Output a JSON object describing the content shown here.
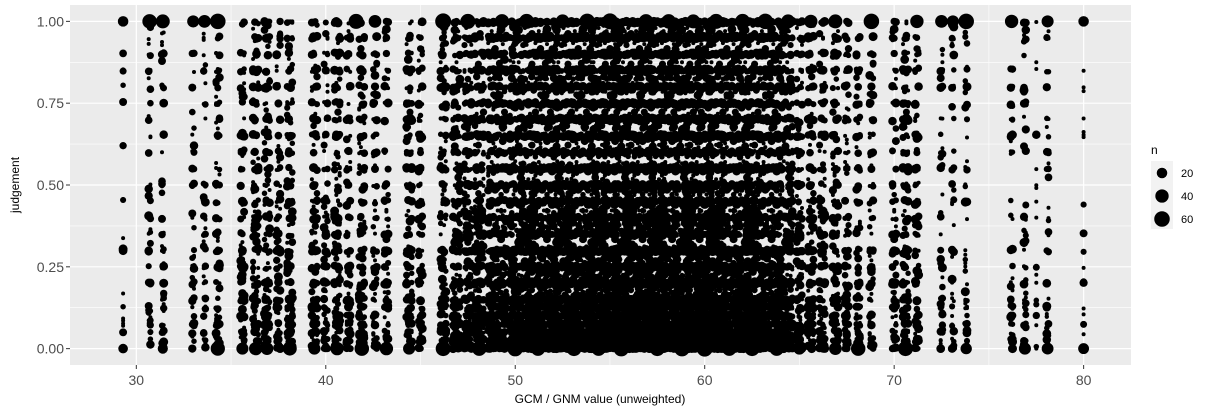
{
  "chart_data": {
    "type": "scatter",
    "xlabel": "GCM / GNM value (unweighted)",
    "ylabel": "judgement",
    "xlim": [
      26.5,
      82.5
    ],
    "ylim": [
      -0.05,
      1.05
    ],
    "x_ticks": [
      30,
      40,
      50,
      60,
      70,
      80
    ],
    "x_tick_labels": [
      "30",
      "40",
      "50",
      "60",
      "70",
      "80"
    ],
    "y_ticks": [
      0,
      0.25,
      0.5,
      0.75,
      1
    ],
    "y_tick_labels": [
      "0.00",
      "0.25",
      "0.50",
      "0.75",
      "1.00"
    ],
    "grid": true,
    "legend": {
      "title": "n",
      "position": "right",
      "entries": [
        {
          "label": "20",
          "n": 20
        },
        {
          "label": "40",
          "n": 40
        },
        {
          "label": "60",
          "n": 60
        }
      ]
    },
    "size_range_n": [
      1,
      65
    ],
    "point_color": "#000000",
    "panel_color": "#ebebeb",
    "grid_color": "#ffffff",
    "points": [
      {
        "x": 29.3,
        "y": 1.0,
        "n": 20
      },
      {
        "x": 29.3,
        "y": 0.0,
        "n": 15
      },
      {
        "x": 29.3,
        "y": 0.62,
        "n": 6
      },
      {
        "x": 30.7,
        "y": 1.0,
        "n": 50
      },
      {
        "x": 31.4,
        "y": 1.0,
        "n": 45
      },
      {
        "x": 31.4,
        "y": 0.0,
        "n": 18
      },
      {
        "x": 33.0,
        "y": 1.0,
        "n": 30
      },
      {
        "x": 33.6,
        "y": 1.0,
        "n": 35
      },
      {
        "x": 34.3,
        "y": 1.0,
        "n": 60
      },
      {
        "x": 34.3,
        "y": 0.0,
        "n": 48
      },
      {
        "x": 35.6,
        "y": 0.0,
        "n": 30
      },
      {
        "x": 36.3,
        "y": 0.0,
        "n": 40
      },
      {
        "x": 36.9,
        "y": 0.0,
        "n": 35
      },
      {
        "x": 38.1,
        "y": 0.0,
        "n": 45
      },
      {
        "x": 39.4,
        "y": 0.0,
        "n": 30
      },
      {
        "x": 40.6,
        "y": 0.0,
        "n": 40
      },
      {
        "x": 41.6,
        "y": 1.0,
        "n": 55
      },
      {
        "x": 41.9,
        "y": 0.0,
        "n": 50
      },
      {
        "x": 42.6,
        "y": 1.0,
        "n": 35
      },
      {
        "x": 43.2,
        "y": 0.0,
        "n": 40
      },
      {
        "x": 44.4,
        "y": 0.0,
        "n": 30
      },
      {
        "x": 46.2,
        "y": 1.0,
        "n": 65
      },
      {
        "x": 46.2,
        "y": 0.0,
        "n": 55
      },
      {
        "x": 47.5,
        "y": 1.0,
        "n": 55
      },
      {
        "x": 48.1,
        "y": 0.0,
        "n": 50
      },
      {
        "x": 49.3,
        "y": 1.0,
        "n": 50
      },
      {
        "x": 50.0,
        "y": 0.0,
        "n": 60
      },
      {
        "x": 50.6,
        "y": 1.0,
        "n": 55
      },
      {
        "x": 51.2,
        "y": 0.0,
        "n": 50
      },
      {
        "x": 52.5,
        "y": 1.0,
        "n": 45
      },
      {
        "x": 53.1,
        "y": 0.0,
        "n": 55
      },
      {
        "x": 53.8,
        "y": 1.0,
        "n": 60
      },
      {
        "x": 54.4,
        "y": 0.0,
        "n": 50
      },
      {
        "x": 55.0,
        "y": 1.0,
        "n": 65
      },
      {
        "x": 55.6,
        "y": 0.0,
        "n": 60
      },
      {
        "x": 56.9,
        "y": 1.0,
        "n": 50
      },
      {
        "x": 57.5,
        "y": 0.0,
        "n": 55
      },
      {
        "x": 58.1,
        "y": 1.0,
        "n": 50
      },
      {
        "x": 58.8,
        "y": 0.0,
        "n": 60
      },
      {
        "x": 59.4,
        "y": 1.0,
        "n": 45
      },
      {
        "x": 60.0,
        "y": 0.0,
        "n": 65
      },
      {
        "x": 60.6,
        "y": 1.0,
        "n": 55
      },
      {
        "x": 61.3,
        "y": 0.0,
        "n": 50
      },
      {
        "x": 62.0,
        "y": 1.0,
        "n": 55
      },
      {
        "x": 62.5,
        "y": 0.0,
        "n": 55
      },
      {
        "x": 63.2,
        "y": 1.0,
        "n": 60
      },
      {
        "x": 63.8,
        "y": 0.0,
        "n": 50
      },
      {
        "x": 64.4,
        "y": 1.0,
        "n": 45
      },
      {
        "x": 65.0,
        "y": 0.0,
        "n": 30
      },
      {
        "x": 65.6,
        "y": 1.0,
        "n": 40
      },
      {
        "x": 66.9,
        "y": 1.0,
        "n": 45
      },
      {
        "x": 66.9,
        "y": 0.0,
        "n": 35
      },
      {
        "x": 68.1,
        "y": 0.0,
        "n": 50
      },
      {
        "x": 68.8,
        "y": 1.0,
        "n": 60
      },
      {
        "x": 70.6,
        "y": 0.0,
        "n": 55
      },
      {
        "x": 71.2,
        "y": 1.0,
        "n": 40
      },
      {
        "x": 72.5,
        "y": 1.0,
        "n": 35
      },
      {
        "x": 73.1,
        "y": 1.0,
        "n": 30
      },
      {
        "x": 73.8,
        "y": 1.0,
        "n": 60
      },
      {
        "x": 73.8,
        "y": 0.0,
        "n": 25
      },
      {
        "x": 76.2,
        "y": 1.0,
        "n": 40
      },
      {
        "x": 76.9,
        "y": 0.0,
        "n": 30
      },
      {
        "x": 78.1,
        "y": 1.0,
        "n": 30
      },
      {
        "x": 78.1,
        "y": 0.0,
        "n": 28
      },
      {
        "x": 80.0,
        "y": 1.0,
        "n": 20
      },
      {
        "x": 80.0,
        "y": 0.0,
        "n": 22
      }
    ],
    "column_density": [
      {
        "x": 29.3,
        "w": 1
      },
      {
        "x": 30.7,
        "w": 2
      },
      {
        "x": 31.4,
        "w": 2
      },
      {
        "x": 33.0,
        "w": 2
      },
      {
        "x": 33.6,
        "w": 2
      },
      {
        "x": 34.3,
        "w": 3
      },
      {
        "x": 35.6,
        "w": 3
      },
      {
        "x": 36.3,
        "w": 4
      },
      {
        "x": 36.9,
        "w": 4
      },
      {
        "x": 37.5,
        "w": 3
      },
      {
        "x": 38.1,
        "w": 4
      },
      {
        "x": 39.4,
        "w": 4
      },
      {
        "x": 40.0,
        "w": 3
      },
      {
        "x": 40.6,
        "w": 4
      },
      {
        "x": 41.2,
        "w": 3
      },
      {
        "x": 41.9,
        "w": 4
      },
      {
        "x": 42.6,
        "w": 3
      },
      {
        "x": 43.2,
        "w": 3
      },
      {
        "x": 44.4,
        "w": 4
      },
      {
        "x": 45.0,
        "w": 3
      },
      {
        "x": 46.2,
        "w": 4
      },
      {
        "x": 46.9,
        "w": 5
      },
      {
        "x": 47.5,
        "w": 5
      },
      {
        "x": 48.1,
        "w": 6
      },
      {
        "x": 48.8,
        "w": 6
      },
      {
        "x": 49.3,
        "w": 6
      },
      {
        "x": 50.0,
        "w": 7
      },
      {
        "x": 50.6,
        "w": 7
      },
      {
        "x": 51.2,
        "w": 8
      },
      {
        "x": 51.9,
        "w": 8
      },
      {
        "x": 52.5,
        "w": 8
      },
      {
        "x": 53.1,
        "w": 8
      },
      {
        "x": 53.8,
        "w": 8
      },
      {
        "x": 54.4,
        "w": 9
      },
      {
        "x": 55.0,
        "w": 9
      },
      {
        "x": 55.6,
        "w": 9
      },
      {
        "x": 56.2,
        "w": 9
      },
      {
        "x": 56.9,
        "w": 9
      },
      {
        "x": 57.5,
        "w": 9
      },
      {
        "x": 58.1,
        "w": 9
      },
      {
        "x": 58.8,
        "w": 9
      },
      {
        "x": 59.4,
        "w": 9
      },
      {
        "x": 60.0,
        "w": 9
      },
      {
        "x": 60.6,
        "w": 9
      },
      {
        "x": 61.3,
        "w": 8
      },
      {
        "x": 62.0,
        "w": 8
      },
      {
        "x": 62.5,
        "w": 8
      },
      {
        "x": 63.2,
        "w": 7
      },
      {
        "x": 63.8,
        "w": 7
      },
      {
        "x": 64.4,
        "w": 6
      },
      {
        "x": 65.0,
        "w": 4
      },
      {
        "x": 65.6,
        "w": 4
      },
      {
        "x": 66.2,
        "w": 4
      },
      {
        "x": 66.9,
        "w": 4
      },
      {
        "x": 67.5,
        "w": 3
      },
      {
        "x": 68.1,
        "w": 3
      },
      {
        "x": 68.8,
        "w": 3
      },
      {
        "x": 70.0,
        "w": 3
      },
      {
        "x": 70.6,
        "w": 4
      },
      {
        "x": 71.2,
        "w": 3
      },
      {
        "x": 72.5,
        "w": 2
      },
      {
        "x": 73.1,
        "w": 2
      },
      {
        "x": 73.8,
        "w": 2
      },
      {
        "x": 76.2,
        "w": 2
      },
      {
        "x": 76.9,
        "w": 2
      },
      {
        "x": 77.5,
        "w": 1
      },
      {
        "x": 78.1,
        "w": 2
      },
      {
        "x": 80.0,
        "w": 1
      }
    ]
  }
}
